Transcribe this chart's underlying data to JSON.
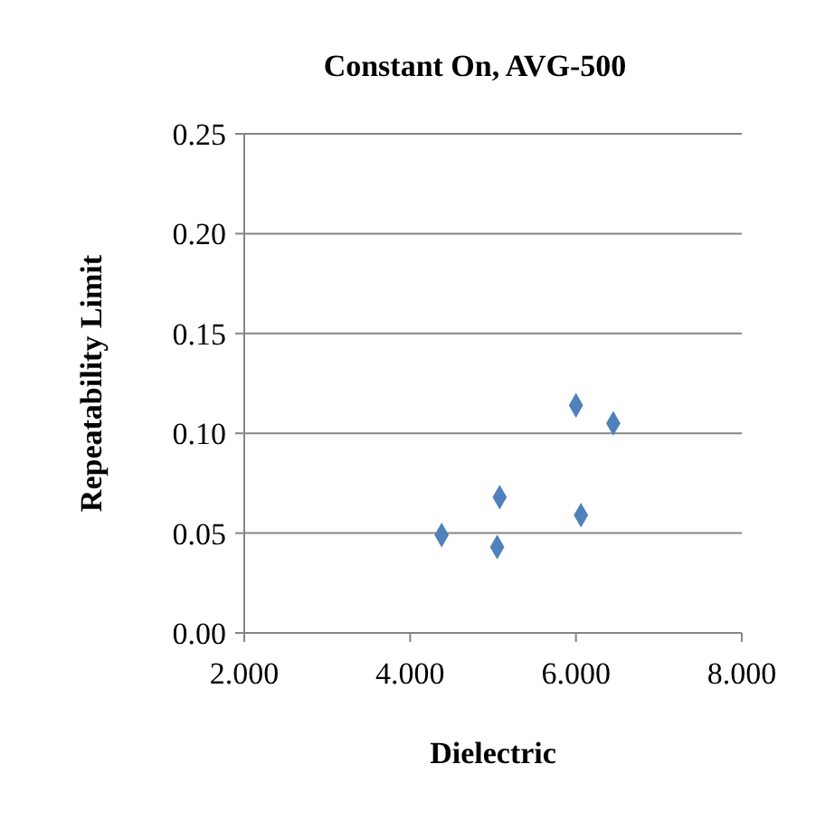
{
  "chart_data": {
    "type": "scatter",
    "title": "Constant On, AVG-500",
    "xlabel": "Dielectric",
    "ylabel": "Repeatability Limit",
    "x": [
      4.38,
      5.05,
      5.08,
      6.0,
      6.06,
      6.45
    ],
    "values": [
      0.049,
      0.043,
      0.068,
      0.114,
      0.059,
      0.105
    ],
    "color": "#4f81bd",
    "marker": "diamond",
    "grid": "y",
    "xlim": [
      2,
      8
    ],
    "xticks": [
      {
        "value": 2,
        "label": "2.000"
      },
      {
        "value": 4,
        "label": "4.000"
      },
      {
        "value": 6,
        "label": "6.000"
      },
      {
        "value": 8,
        "label": "8.000"
      }
    ],
    "ylim": [
      0,
      0.25
    ],
    "yticks": [
      {
        "value": 0,
        "label": "0.00"
      },
      {
        "value": 0.05,
        "label": "0.05"
      },
      {
        "value": 0.1,
        "label": "0.10"
      },
      {
        "value": 0.15,
        "label": "0.15"
      },
      {
        "value": 0.2,
        "label": "0.20"
      },
      {
        "value": 0.25,
        "label": "0.25"
      }
    ]
  }
}
